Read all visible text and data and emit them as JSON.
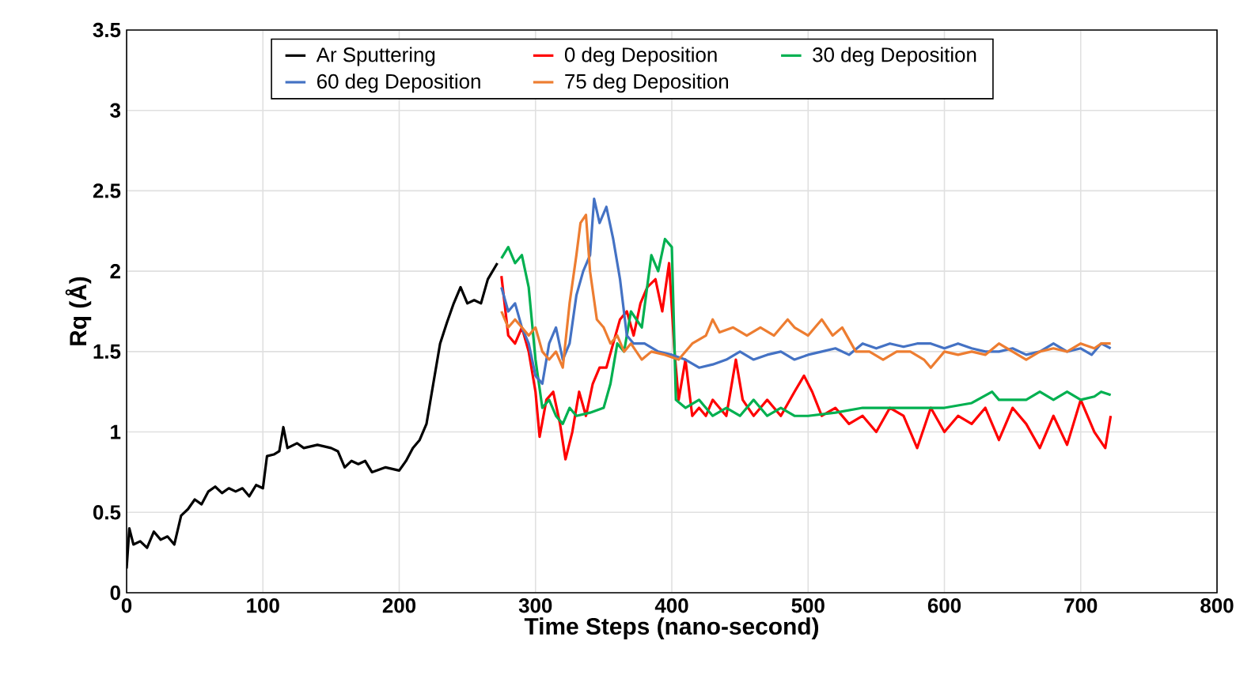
{
  "chart_data": {
    "type": "line",
    "xlabel": "Time Steps (nano-second)",
    "ylabel": "Rq (Å)",
    "xlim": [
      0,
      800
    ],
    "ylim": [
      0,
      3.5
    ],
    "xticks": [
      0,
      100,
      200,
      300,
      400,
      500,
      600,
      700,
      800
    ],
    "yticks": [
      0,
      0.5,
      1,
      1.5,
      2,
      2.5,
      3,
      3.5
    ],
    "grid": true,
    "legend": "top",
    "line_style": "solid",
    "series": [
      {
        "name": "Ar Sputtering",
        "color": "#000000",
        "x": [
          0,
          2,
          5,
          10,
          15,
          20,
          25,
          30,
          35,
          40,
          45,
          50,
          55,
          60,
          65,
          70,
          75,
          80,
          85,
          90,
          95,
          100,
          103,
          108,
          112,
          115,
          118,
          125,
          130,
          140,
          150,
          155,
          160,
          165,
          170,
          175,
          180,
          190,
          200,
          205,
          210,
          215,
          220,
          225,
          230,
          235,
          240,
          245,
          250,
          255,
          260,
          265,
          272
        ],
        "values": [
          0.15,
          0.4,
          0.3,
          0.32,
          0.28,
          0.38,
          0.33,
          0.35,
          0.3,
          0.48,
          0.52,
          0.58,
          0.55,
          0.63,
          0.66,
          0.62,
          0.65,
          0.63,
          0.65,
          0.6,
          0.67,
          0.65,
          0.85,
          0.86,
          0.88,
          1.03,
          0.9,
          0.93,
          0.9,
          0.92,
          0.9,
          0.88,
          0.78,
          0.82,
          0.8,
          0.82,
          0.75,
          0.78,
          0.76,
          0.82,
          0.9,
          0.95,
          1.05,
          1.3,
          1.55,
          1.68,
          1.8,
          1.9,
          1.8,
          1.82,
          1.8,
          1.95,
          2.05
        ]
      },
      {
        "name": "0 deg Deposition",
        "color": "#ff0000",
        "x": [
          275,
          280,
          285,
          290,
          295,
          300,
          303,
          308,
          313,
          318,
          322,
          327,
          332,
          337,
          342,
          347,
          352,
          357,
          362,
          367,
          372,
          377,
          382,
          388,
          393,
          398,
          402,
          405,
          410,
          415,
          420,
          425,
          430,
          440,
          447,
          452,
          460,
          470,
          480,
          490,
          497,
          503,
          510,
          520,
          530,
          540,
          550,
          560,
          570,
          580,
          590,
          600,
          610,
          620,
          630,
          640,
          650,
          660,
          670,
          680,
          690,
          700,
          710,
          718,
          722
        ],
        "values": [
          1.97,
          1.6,
          1.55,
          1.65,
          1.5,
          1.25,
          0.97,
          1.2,
          1.25,
          1.05,
          0.83,
          1.0,
          1.25,
          1.1,
          1.3,
          1.4,
          1.4,
          1.55,
          1.7,
          1.75,
          1.6,
          1.8,
          1.9,
          1.95,
          1.75,
          2.05,
          1.5,
          1.2,
          1.45,
          1.1,
          1.15,
          1.1,
          1.2,
          1.1,
          1.45,
          1.2,
          1.1,
          1.2,
          1.1,
          1.25,
          1.35,
          1.25,
          1.1,
          1.15,
          1.05,
          1.1,
          1.0,
          1.15,
          1.1,
          0.9,
          1.15,
          1.0,
          1.1,
          1.05,
          1.15,
          0.95,
          1.15,
          1.05,
          0.9,
          1.1,
          0.92,
          1.2,
          1.0,
          0.9,
          1.1
        ]
      },
      {
        "name": "30 deg Deposition",
        "color": "#00b050",
        "x": [
          275,
          280,
          285,
          290,
          295,
          300,
          305,
          310,
          315,
          320,
          325,
          330,
          340,
          350,
          355,
          360,
          365,
          370,
          378,
          385,
          390,
          395,
          400,
          403,
          410,
          420,
          430,
          440,
          450,
          460,
          470,
          480,
          490,
          500,
          520,
          540,
          560,
          580,
          600,
          620,
          635,
          640,
          660,
          670,
          680,
          690,
          700,
          710,
          715,
          722
        ],
        "values": [
          2.08,
          2.15,
          2.05,
          2.1,
          1.9,
          1.45,
          1.15,
          1.2,
          1.1,
          1.05,
          1.15,
          1.1,
          1.12,
          1.15,
          1.3,
          1.55,
          1.5,
          1.75,
          1.65,
          2.1,
          2.0,
          2.2,
          2.15,
          1.2,
          1.15,
          1.2,
          1.1,
          1.15,
          1.1,
          1.2,
          1.1,
          1.15,
          1.1,
          1.1,
          1.12,
          1.15,
          1.15,
          1.15,
          1.15,
          1.18,
          1.25,
          1.2,
          1.2,
          1.25,
          1.2,
          1.25,
          1.2,
          1.22,
          1.25,
          1.23
        ]
      },
      {
        "name": "60 deg Deposition",
        "color": "#4472c4",
        "x": [
          275,
          280,
          285,
          290,
          295,
          300,
          305,
          310,
          315,
          320,
          325,
          330,
          335,
          340,
          343,
          347,
          352,
          357,
          362,
          367,
          372,
          380,
          390,
          400,
          410,
          420,
          430,
          440,
          450,
          460,
          470,
          480,
          490,
          500,
          510,
          520,
          530,
          540,
          550,
          560,
          570,
          580,
          590,
          600,
          610,
          620,
          630,
          640,
          650,
          660,
          670,
          680,
          690,
          700,
          708,
          715,
          722
        ],
        "values": [
          1.9,
          1.75,
          1.8,
          1.65,
          1.55,
          1.35,
          1.3,
          1.55,
          1.65,
          1.45,
          1.55,
          1.85,
          2.0,
          2.1,
          2.45,
          2.3,
          2.4,
          2.2,
          1.95,
          1.6,
          1.55,
          1.55,
          1.5,
          1.48,
          1.45,
          1.4,
          1.42,
          1.45,
          1.5,
          1.45,
          1.48,
          1.5,
          1.45,
          1.48,
          1.5,
          1.52,
          1.48,
          1.55,
          1.52,
          1.55,
          1.53,
          1.55,
          1.55,
          1.52,
          1.55,
          1.52,
          1.5,
          1.5,
          1.52,
          1.48,
          1.5,
          1.55,
          1.5,
          1.52,
          1.48,
          1.55,
          1.52
        ]
      },
      {
        "name": "75 deg Deposition",
        "color": "#ed7d31",
        "x": [
          275,
          280,
          285,
          290,
          295,
          300,
          305,
          310,
          315,
          320,
          325,
          330,
          333,
          337,
          340,
          345,
          350,
          355,
          360,
          365,
          370,
          378,
          385,
          395,
          405,
          415,
          425,
          430,
          435,
          445,
          455,
          465,
          475,
          485,
          490,
          500,
          510,
          518,
          525,
          535,
          545,
          555,
          565,
          575,
          585,
          590,
          600,
          610,
          620,
          630,
          640,
          650,
          660,
          670,
          680,
          690,
          700,
          710,
          715,
          722
        ],
        "values": [
          1.75,
          1.65,
          1.7,
          1.65,
          1.6,
          1.65,
          1.5,
          1.45,
          1.5,
          1.4,
          1.8,
          2.1,
          2.3,
          2.35,
          2.0,
          1.7,
          1.65,
          1.55,
          1.6,
          1.5,
          1.55,
          1.45,
          1.5,
          1.48,
          1.45,
          1.55,
          1.6,
          1.7,
          1.62,
          1.65,
          1.6,
          1.65,
          1.6,
          1.7,
          1.65,
          1.6,
          1.7,
          1.6,
          1.65,
          1.5,
          1.5,
          1.45,
          1.5,
          1.5,
          1.45,
          1.4,
          1.5,
          1.48,
          1.5,
          1.48,
          1.55,
          1.5,
          1.45,
          1.5,
          1.52,
          1.5,
          1.55,
          1.52,
          1.55,
          1.55
        ]
      }
    ]
  }
}
